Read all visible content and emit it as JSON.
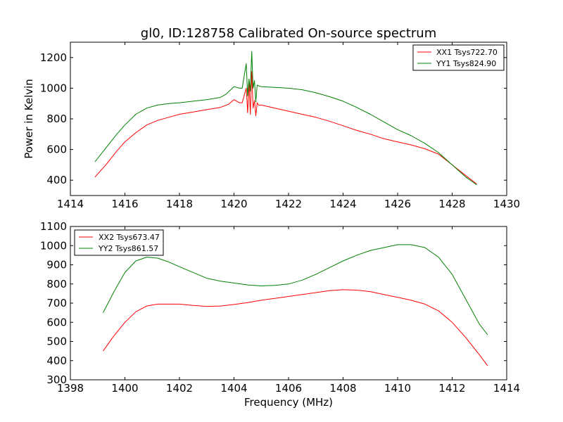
{
  "figure": {
    "title": "gl0, ID:128758 Calibrated On-source spectrum",
    "ylabel": "Power in Kelvin",
    "xlabel": "Frequency (MHz)"
  },
  "colors": {
    "xx": "#ff0000",
    "yy": "#008000"
  },
  "chart_data": [
    {
      "type": "line",
      "xlim": [
        1414,
        1430
      ],
      "ylim": [
        300,
        1300
      ],
      "xticks": [
        1414,
        1416,
        1418,
        1420,
        1422,
        1424,
        1426,
        1428,
        1430
      ],
      "yticks": [
        400,
        600,
        800,
        1000,
        1200
      ],
      "legend": "top-right",
      "grid": false,
      "series": [
        {
          "name": "XX1 Tsys722.70",
          "color": "#ff0000",
          "x": [
            1414.9,
            1415.3,
            1415.7,
            1416.0,
            1416.4,
            1416.8,
            1417.2,
            1417.6,
            1418.0,
            1418.5,
            1419.0,
            1419.5,
            1419.8,
            1420.0,
            1420.2,
            1420.3,
            1420.45,
            1420.5,
            1420.55,
            1420.6,
            1420.65,
            1420.7,
            1420.75,
            1420.8,
            1420.85,
            1420.9,
            1421.0,
            1421.5,
            1422.0,
            1422.5,
            1423.0,
            1423.5,
            1424.0,
            1424.5,
            1425.0,
            1425.5,
            1426.0,
            1426.5,
            1427.0,
            1427.5,
            1428.0,
            1428.5,
            1428.9
          ],
          "y": [
            420,
            500,
            590,
            650,
            710,
            760,
            790,
            810,
            830,
            845,
            860,
            875,
            895,
            925,
            905,
            905,
            1000,
            840,
            1040,
            830,
            1110,
            870,
            920,
            820,
            905,
            890,
            890,
            870,
            850,
            830,
            810,
            785,
            755,
            725,
            700,
            670,
            650,
            630,
            605,
            570,
            500,
            430,
            375
          ]
        },
        {
          "name": "YY1 Tsys824.90",
          "color": "#008000",
          "x": [
            1414.9,
            1415.3,
            1415.7,
            1416.0,
            1416.4,
            1416.8,
            1417.2,
            1417.6,
            1418.0,
            1418.5,
            1419.0,
            1419.5,
            1419.7,
            1420.0,
            1420.2,
            1420.3,
            1420.45,
            1420.5,
            1420.55,
            1420.6,
            1420.65,
            1420.7,
            1420.75,
            1420.8,
            1420.85,
            1420.9,
            1421.0,
            1421.5,
            1422.0,
            1422.5,
            1423.0,
            1423.5,
            1424.0,
            1424.5,
            1425.0,
            1425.5,
            1426.0,
            1426.5,
            1427.0,
            1427.5,
            1428.0,
            1428.5,
            1428.9
          ],
          "y": [
            520,
            610,
            700,
            760,
            830,
            870,
            890,
            900,
            905,
            915,
            925,
            940,
            960,
            1010,
            1000,
            1000,
            1160,
            950,
            1060,
            980,
            1240,
            1000,
            1050,
            910,
            1020,
            1015,
            1010,
            1005,
            1000,
            990,
            970,
            945,
            915,
            875,
            830,
            780,
            730,
            690,
            640,
            580,
            500,
            420,
            370
          ]
        }
      ]
    },
    {
      "type": "line",
      "xlim": [
        1398,
        1414
      ],
      "ylim": [
        300,
        1100
      ],
      "xticks": [
        1398,
        1400,
        1402,
        1404,
        1406,
        1408,
        1410,
        1412,
        1414
      ],
      "yticks": [
        300,
        400,
        500,
        600,
        700,
        800,
        900,
        1000,
        1100
      ],
      "legend": "top-left",
      "grid": false,
      "series": [
        {
          "name": "XX2 Tsys673.47",
          "color": "#ff0000",
          "x": [
            1399.2,
            1399.6,
            1400.0,
            1400.4,
            1400.8,
            1401.2,
            1401.6,
            1402.0,
            1402.5,
            1403.0,
            1403.5,
            1404.0,
            1404.5,
            1405.0,
            1405.5,
            1406.0,
            1406.5,
            1407.0,
            1407.5,
            1408.0,
            1408.5,
            1409.0,
            1409.5,
            1410.0,
            1410.5,
            1411.0,
            1411.5,
            1412.0,
            1412.5,
            1413.0,
            1413.3
          ],
          "y": [
            450,
            530,
            600,
            655,
            685,
            695,
            695,
            695,
            688,
            683,
            685,
            693,
            703,
            715,
            725,
            735,
            745,
            755,
            765,
            770,
            768,
            760,
            745,
            730,
            715,
            695,
            660,
            600,
            520,
            430,
            373
          ]
        },
        {
          "name": "YY2 Tsys861.57",
          "color": "#008000",
          "x": [
            1399.2,
            1399.6,
            1400.0,
            1400.4,
            1400.8,
            1401.2,
            1401.6,
            1402.0,
            1402.5,
            1403.0,
            1403.5,
            1404.0,
            1404.5,
            1405.0,
            1405.5,
            1406.0,
            1406.5,
            1407.0,
            1407.5,
            1408.0,
            1408.5,
            1409.0,
            1409.5,
            1410.0,
            1410.5,
            1411.0,
            1411.5,
            1412.0,
            1412.5,
            1413.0,
            1413.3
          ],
          "y": [
            650,
            760,
            860,
            920,
            940,
            935,
            915,
            890,
            860,
            830,
            815,
            805,
            795,
            790,
            793,
            800,
            820,
            850,
            885,
            920,
            950,
            975,
            990,
            1005,
            1005,
            990,
            940,
            850,
            720,
            590,
            535
          ]
        }
      ]
    }
  ]
}
